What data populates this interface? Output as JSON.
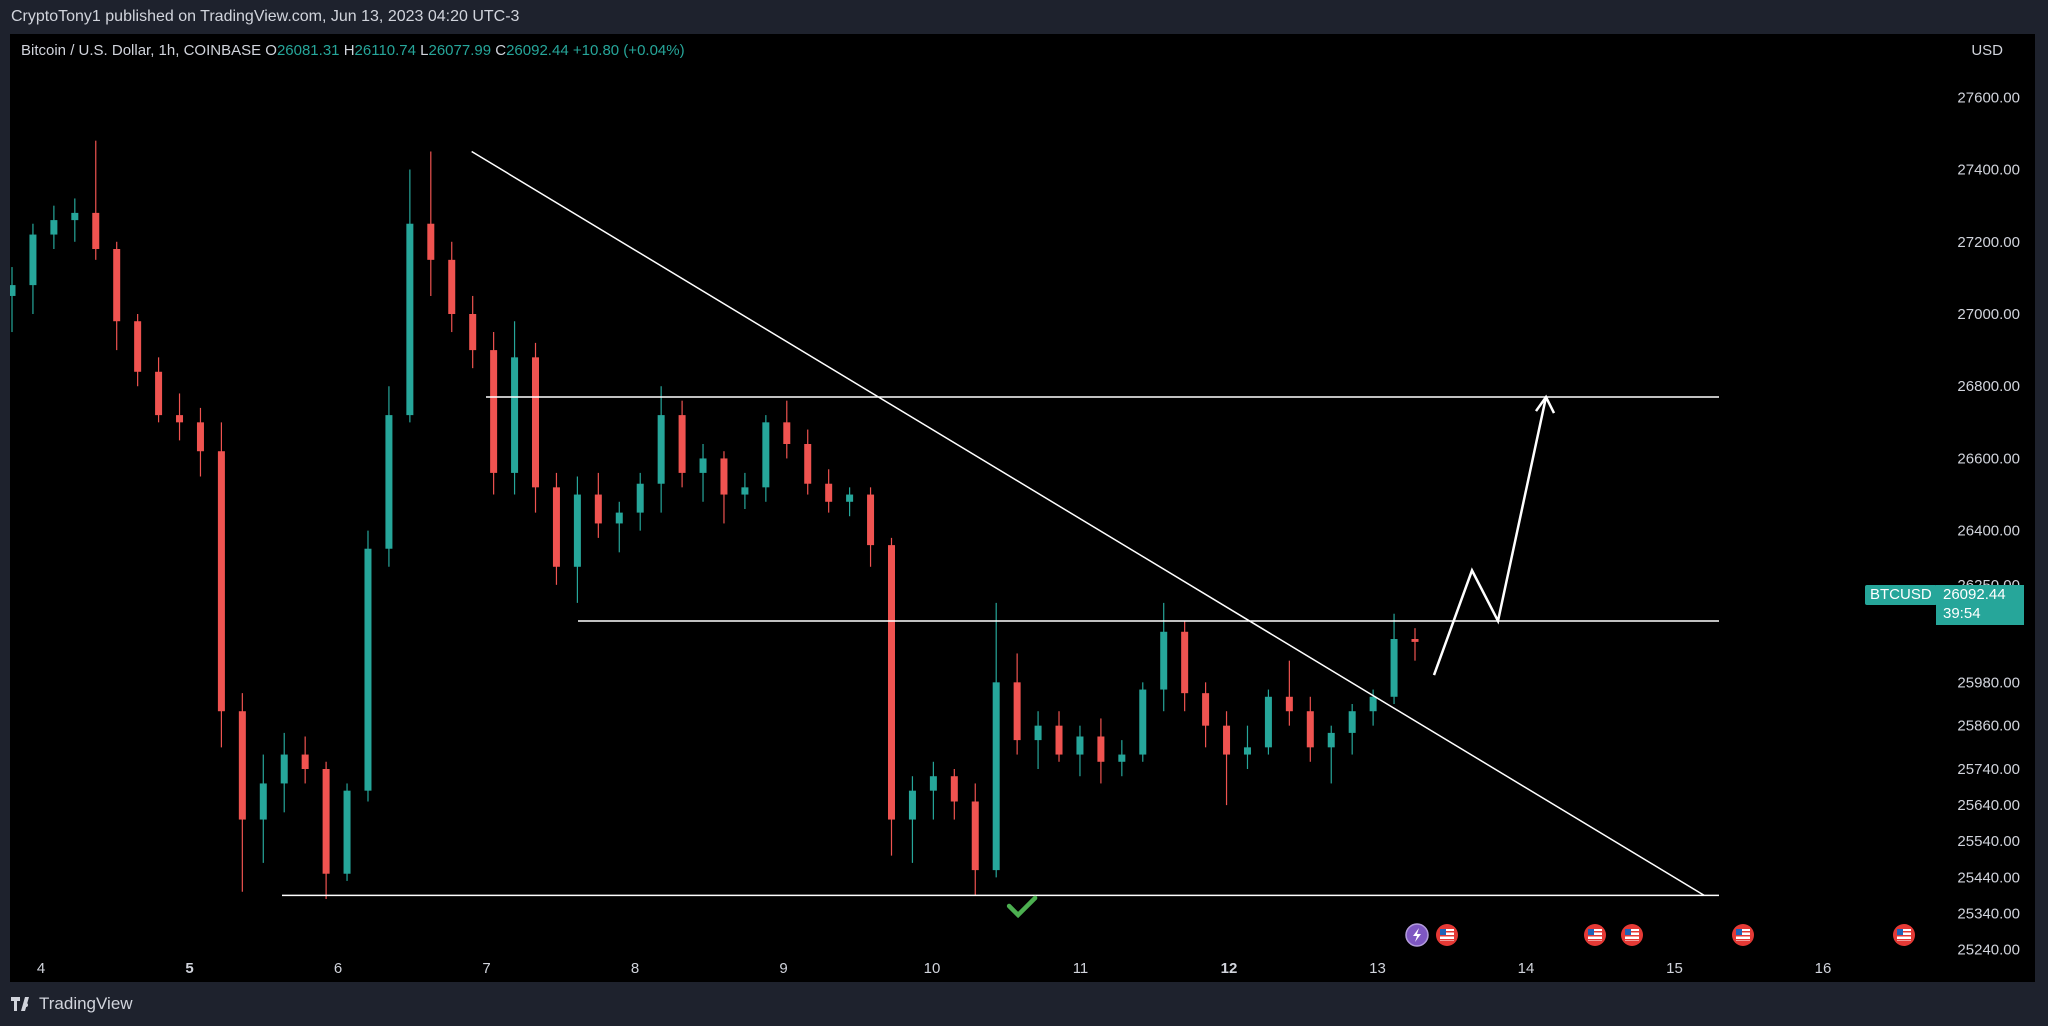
{
  "header": {
    "published": "CryptoTony1 published on TradingView.com, Jun 13, 2023 04:20 UTC-3"
  },
  "legend": {
    "instrument": "Bitcoin / U.S. Dollar, 1h, COINBASE",
    "o_label": "O",
    "o_value": "26081.31",
    "h_label": "H",
    "h_value": "26110.74",
    "l_label": "L",
    "l_value": "26077.99",
    "c_label": "C",
    "c_value": "26092.44",
    "change": "+10.80 (+0.04%)"
  },
  "currency": "USD",
  "price_axis": {
    "ticks": [
      "27600.00",
      "27400.00",
      "27200.00",
      "27000.00",
      "26800.00",
      "26600.00",
      "26400.00",
      "26250.00",
      "25980.00",
      "25860.00",
      "25740.00",
      "25640.00",
      "25540.00",
      "25440.00",
      "25340.00",
      "25240.00"
    ]
  },
  "date_axis": {
    "ticks": [
      "4",
      "5",
      "6",
      "7",
      "8",
      "9",
      "10",
      "11",
      "12",
      "13",
      "14",
      "15",
      "16"
    ],
    "bold": [
      "5",
      "12"
    ]
  },
  "last_price": {
    "symbol": "BTCUSD",
    "price": "26092.44",
    "countdown": "39:54"
  },
  "colors": {
    "up": "#26a69a",
    "down": "#ef5350",
    "lines": "#ffffff",
    "check": "#4caf50"
  },
  "events": [
    "lightning-icon",
    "us-flag-icon",
    "us-flag-icon",
    "us-flag-icon",
    "us-flag-icon",
    "us-flag-icon"
  ],
  "footer": {
    "brand": "TradingView"
  },
  "chart_data": {
    "type": "candlestick",
    "ylabel": "USD",
    "ylim": [
      25200,
      27720
    ],
    "x_categories": [
      "4",
      "5",
      "6",
      "7",
      "8",
      "9",
      "10",
      "11",
      "12",
      "13",
      "14",
      "15",
      "16"
    ],
    "levels": {
      "resistance": 26770,
      "mid_support": 26150,
      "support": 25390
    },
    "trendline": {
      "from": [
        "6.9",
        27450
      ],
      "to": [
        "15.2",
        25390
      ]
    },
    "projection": [
      26000,
      26290,
      26150,
      26770
    ],
    "series": [
      {
        "values": [
          [
            27050,
            27130,
            26950,
            27080
          ],
          [
            27080,
            27250,
            27000,
            27220
          ],
          [
            27220,
            27300,
            27180,
            27260
          ],
          [
            27260,
            27320,
            27200,
            27280
          ],
          [
            27280,
            27480,
            27150,
            27180
          ],
          [
            27180,
            27200,
            26900,
            26980
          ],
          [
            26980,
            27000,
            26800,
            26840
          ],
          [
            26840,
            26880,
            26700,
            26720
          ],
          [
            26720,
            26780,
            26650,
            26700
          ],
          [
            26700,
            26740,
            26550,
            26620
          ],
          [
            26620,
            26700,
            25800,
            25900
          ],
          [
            25900,
            25950,
            25400,
            25600
          ],
          [
            25600,
            25780,
            25480,
            25700
          ],
          [
            25700,
            25840,
            25620,
            25780
          ],
          [
            25780,
            25830,
            25700,
            25740
          ],
          [
            25740,
            25760,
            25380,
            25450
          ],
          [
            25450,
            25700,
            25430,
            25680
          ],
          [
            25680,
            26400,
            25650,
            26350
          ],
          [
            26350,
            26800,
            26300,
            26720
          ],
          [
            26720,
            27400,
            26700,
            27250
          ],
          [
            27250,
            27450,
            27050,
            27150
          ],
          [
            27150,
            27200,
            26950,
            27000
          ],
          [
            27000,
            27050,
            26850,
            26900
          ],
          [
            26900,
            26950,
            26500,
            26560
          ],
          [
            26560,
            26980,
            26500,
            26880
          ],
          [
            26880,
            26920,
            26450,
            26520
          ],
          [
            26520,
            26560,
            26250,
            26300
          ],
          [
            26300,
            26550,
            26200,
            26500
          ],
          [
            26500,
            26560,
            26380,
            26420
          ],
          [
            26420,
            26480,
            26340,
            26450
          ],
          [
            26450,
            26560,
            26400,
            26530
          ],
          [
            26530,
            26800,
            26450,
            26720
          ],
          [
            26720,
            26760,
            26520,
            26560
          ],
          [
            26560,
            26640,
            26480,
            26600
          ],
          [
            26600,
            26620,
            26420,
            26500
          ],
          [
            26500,
            26560,
            26460,
            26520
          ],
          [
            26520,
            26720,
            26480,
            26700
          ],
          [
            26700,
            26760,
            26600,
            26640
          ],
          [
            26640,
            26680,
            26500,
            26530
          ],
          [
            26530,
            26570,
            26450,
            26480
          ],
          [
            26480,
            26520,
            26440,
            26500
          ],
          [
            26500,
            26520,
            26300,
            26360
          ],
          [
            26360,
            26380,
            25500,
            25600
          ],
          [
            25600,
            25720,
            25480,
            25680
          ],
          [
            25680,
            25760,
            25600,
            25720
          ],
          [
            25720,
            25740,
            25600,
            25650
          ],
          [
            25650,
            25700,
            25390,
            25460
          ],
          [
            25460,
            26200,
            25440,
            25980
          ],
          [
            25980,
            26060,
            25780,
            25820
          ],
          [
            25820,
            25900,
            25740,
            25860
          ],
          [
            25860,
            25900,
            25760,
            25780
          ],
          [
            25780,
            25860,
            25720,
            25830
          ],
          [
            25830,
            25880,
            25700,
            25760
          ],
          [
            25760,
            25820,
            25720,
            25780
          ],
          [
            25780,
            25980,
            25760,
            25960
          ],
          [
            25960,
            26200,
            25900,
            26120
          ],
          [
            26120,
            26150,
            25900,
            25950
          ],
          [
            25950,
            25980,
            25800,
            25860
          ],
          [
            25860,
            25900,
            25640,
            25780
          ],
          [
            25780,
            25860,
            25740,
            25800
          ],
          [
            25800,
            25960,
            25780,
            25940
          ],
          [
            25940,
            26040,
            25860,
            25900
          ],
          [
            25900,
            25940,
            25760,
            25800
          ],
          [
            25800,
            25860,
            25700,
            25840
          ],
          [
            25840,
            25920,
            25780,
            25900
          ],
          [
            25900,
            25960,
            25860,
            25940
          ],
          [
            25940,
            26170,
            25920,
            26100
          ],
          [
            26100,
            26130,
            26040,
            26092
          ]
        ]
      }
    ]
  }
}
